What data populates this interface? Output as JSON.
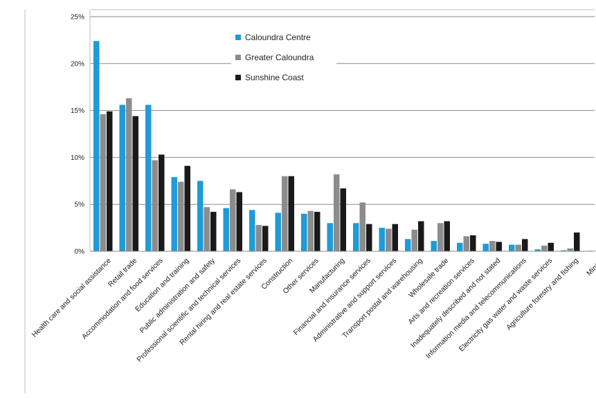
{
  "chart_data": {
    "type": "bar",
    "title": "",
    "xlabel": "",
    "ylabel": "",
    "ylim": [
      0,
      25
    ],
    "yticks": [
      "0%",
      "5%",
      "10%",
      "15%",
      "20%",
      "25%"
    ],
    "grid": true,
    "legend_position": "top-center",
    "categories": [
      "Health care and social assistance",
      "Retail trade",
      "Accommodation and food services",
      "Education and training",
      "Public administration and safety",
      "Professional scientific and technical services",
      "Rental hiring and real estate services",
      "Construction",
      "Other services",
      "Manufacturing",
      "Financial and insurance services",
      "Administrative and support services",
      "Transport postal and warehousing",
      "Wholesale trade",
      "Arts and recreation services",
      "Inadequately described and not stated",
      "Information media and telecommunications",
      "Electricity gas water and waste services",
      "Agriculture forestry and fishing",
      "Mining"
    ],
    "series": [
      {
        "name": "Caloundra Centre",
        "color": "#1f9bd7",
        "values": [
          22.4,
          15.6,
          15.6,
          7.9,
          7.5,
          4.6,
          4.4,
          4.1,
          4.0,
          3.0,
          3.0,
          2.5,
          1.3,
          1.1,
          0.9,
          0.8,
          0.7,
          0.2,
          0.1,
          0.05
        ]
      },
      {
        "name": "Greater Caloundra",
        "color": "#8c8c8c",
        "values": [
          14.6,
          16.3,
          9.7,
          7.4,
          4.7,
          6.6,
          2.8,
          8.0,
          4.3,
          8.2,
          5.2,
          2.4,
          2.3,
          3.0,
          1.6,
          1.1,
          0.7,
          0.6,
          0.3,
          0.05
        ]
      },
      {
        "name": "Sunshine Coast",
        "color": "#1a1a1a",
        "values": [
          14.9,
          14.4,
          10.3,
          9.1,
          4.2,
          6.3,
          2.7,
          8.0,
          4.2,
          6.7,
          2.9,
          2.9,
          3.2,
          3.2,
          1.7,
          1.0,
          1.3,
          0.9,
          2.0,
          0.05
        ]
      }
    ]
  }
}
